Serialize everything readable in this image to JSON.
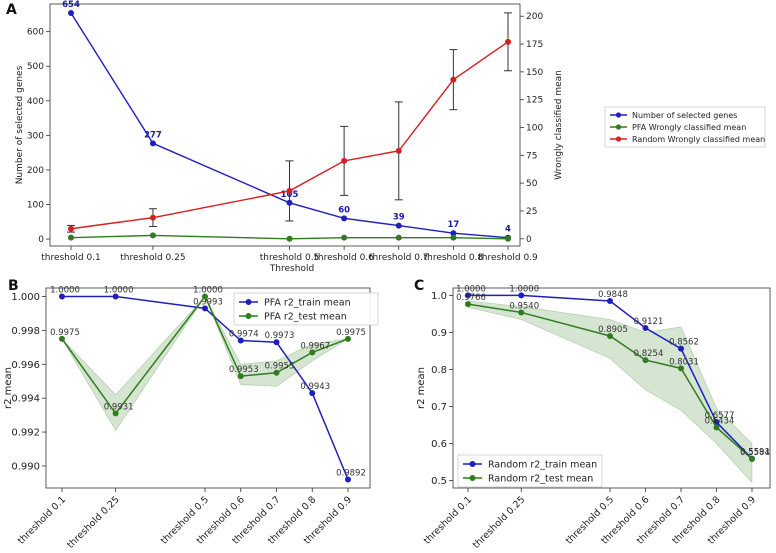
{
  "chart_data": [
    {
      "panel": "A",
      "type": "line",
      "categories": [
        "threshold 0.1",
        "threshold 0.25",
        "threshold 0.5",
        "threshold 0.6",
        "threshold 0.7",
        "threshold 0.8",
        "threshold 0.9"
      ],
      "x": [
        0.1,
        0.25,
        0.5,
        0.6,
        0.7,
        0.8,
        0.9
      ],
      "xlabel": "Threshold",
      "ylabel": "Number of selected genes",
      "ylabel_right": "Wrongly classified mean",
      "ylim": [
        -20,
        680
      ],
      "ylim_right": [
        -6.5,
        211
      ],
      "yticks": [
        "0",
        "100",
        "200",
        "300",
        "400",
        "500",
        "600"
      ],
      "yticks_right": [
        "0",
        "25",
        "50",
        "75",
        "100",
        "125",
        "150",
        "175",
        "200"
      ],
      "series": [
        {
          "name": "Number of selected genes",
          "axis": "left",
          "color": "#1f1fbf",
          "values": [
            654,
            277,
            105,
            60,
            39,
            17,
            4
          ],
          "labels": [
            "654",
            "277",
            "105",
            "60",
            "39",
            "17",
            "4"
          ]
        },
        {
          "name": "PFA Wrongly classified mean",
          "axis": "right",
          "color": "#2e7d1e",
          "values": [
            1,
            3,
            0,
            1,
            1,
            1,
            0
          ],
          "errors": [
            0,
            0,
            0,
            0,
            0,
            0,
            0
          ]
        },
        {
          "name": "Random Wrongly classified mean",
          "axis": "right",
          "color": "#d62020",
          "values": [
            9,
            19,
            43,
            70,
            79,
            143,
            177
          ],
          "errors": [
            3,
            8,
            27,
            31,
            44,
            27,
            26
          ]
        }
      ],
      "legend": "right"
    },
    {
      "panel": "B",
      "type": "line",
      "categories": [
        "threshold 0.1",
        "threshold 0.25",
        "threshold 0.5",
        "threshold 0.6",
        "threshold 0.7",
        "threshold 0.8",
        "threshold 0.9"
      ],
      "x": [
        0.1,
        0.25,
        0.5,
        0.6,
        0.7,
        0.8,
        0.9
      ],
      "ylabel": "r2 mean",
      "ylim": [
        0.9887,
        1.0005
      ],
      "yticks": [
        "0.990",
        "0.992",
        "0.994",
        "0.996",
        "0.998",
        "1.000"
      ],
      "series": [
        {
          "name": "PFA r2_train mean",
          "color": "#1f1fbf",
          "values": [
            1.0,
            1.0,
            0.9993,
            0.9974,
            0.9973,
            0.9943,
            0.9892
          ],
          "labels": [
            "1.0000",
            "1.0000",
            "0.9993",
            "0.9974",
            "0.9973",
            "0.9943",
            "0.9892"
          ]
        },
        {
          "name": "PFA r2_test mean",
          "color": "#2e7d1e",
          "values": [
            0.9975,
            0.9931,
            1.0,
            0.9953,
            0.9955,
            0.9967,
            0.9975
          ],
          "labels": [
            "0.9975",
            "0.9931",
            "1.0000",
            "0.9953",
            "0.9955",
            "0.9967",
            "0.9975"
          ],
          "band_low": [
            0.9975,
            0.9921,
            1.0,
            0.9948,
            0.9947,
            0.9962,
            0.9975
          ],
          "band_high": [
            0.9975,
            0.9942,
            1.0,
            0.996,
            0.9962,
            0.9972,
            0.9975
          ]
        }
      ],
      "legend": "top-right"
    },
    {
      "panel": "C",
      "type": "line",
      "categories": [
        "threshold 0.1",
        "threshold 0.25",
        "threshold 0.5",
        "threshold 0.6",
        "threshold 0.7",
        "threshold 0.8",
        "threshold 0.9"
      ],
      "x": [
        0.1,
        0.25,
        0.5,
        0.6,
        0.7,
        0.8,
        0.9
      ],
      "ylabel": "r2 mean",
      "ylim": [
        0.48,
        1.02
      ],
      "yticks": [
        "0.5",
        "0.6",
        "0.7",
        "0.8",
        "0.9",
        "1.0"
      ],
      "series": [
        {
          "name": "Random r2_train mean",
          "color": "#1f1fbf",
          "values": [
            1.0,
            1.0,
            0.9848,
            0.9121,
            0.8562,
            0.6577,
            0.5591
          ],
          "labels": [
            "1.0000",
            "1.0000",
            "0.9848",
            "0.9121",
            "0.8562",
            "0.6577",
            "0.5591"
          ]
        },
        {
          "name": "Random r2_test mean",
          "color": "#2e7d1e",
          "values": [
            0.9766,
            0.954,
            0.8905,
            0.8254,
            0.8031,
            0.6434,
            0.5584
          ],
          "labels": [
            "0.9766",
            "0.9540",
            "0.8905",
            "0.8254",
            "0.8031",
            "0.6434",
            "0.5584"
          ],
          "band_low": [
            0.968,
            0.935,
            0.83,
            0.745,
            0.69,
            0.6,
            0.495
          ],
          "band_high": [
            0.985,
            0.97,
            0.935,
            0.9,
            0.915,
            0.695,
            0.6
          ]
        }
      ],
      "legend": "bottom-left"
    }
  ]
}
